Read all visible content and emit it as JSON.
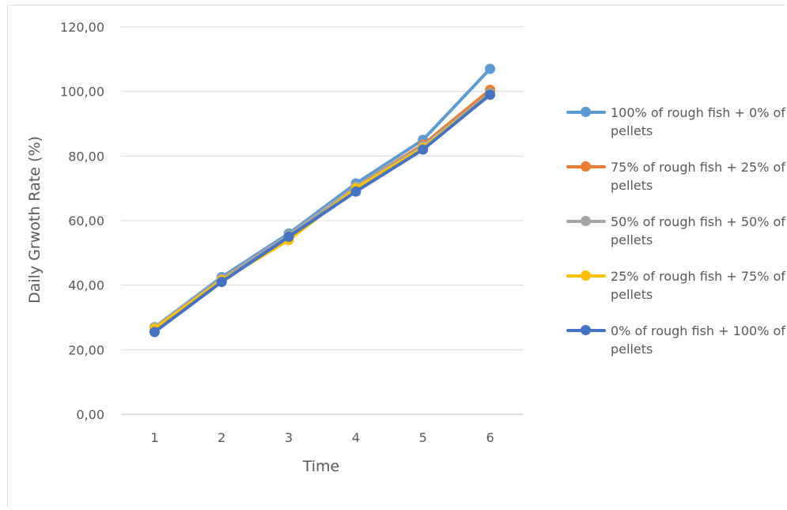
{
  "chart_data": {
    "type": "line",
    "xlabel": "Time",
    "ylabel": "Daily Grwoth Rate (%)",
    "categories": [
      "1",
      "2",
      "3",
      "4",
      "5",
      "6"
    ],
    "y_tick_labels": [
      "0,00",
      "20,00",
      "40,00",
      "60,00",
      "80,00",
      "100,00",
      "120,00"
    ],
    "ylim": [
      0,
      120
    ],
    "grid": "horizontal",
    "legend_position": "right",
    "series": [
      {
        "name": "100% of rough fish + 0% of pellets",
        "color": "#5b9bd5",
        "values": [
          27.0,
          42.5,
          56.0,
          71.5,
          85.0,
          107.0
        ]
      },
      {
        "name": "75% of rough fish + 25% of pellets",
        "color": "#ed7d31",
        "values": [
          26.5,
          42.0,
          55.0,
          70.5,
          83.5,
          100.5
        ]
      },
      {
        "name": "50% of rough fish + 50% of pellets",
        "color": "#a5a5a5",
        "values": [
          27.0,
          42.0,
          55.5,
          70.5,
          83.0,
          99.5
        ]
      },
      {
        "name": "25% of rough fish + 75% of pellets",
        "color": "#ffc000",
        "values": [
          26.5,
          41.5,
          54.0,
          70.0,
          82.5,
          99.0
        ]
      },
      {
        "name": "0% of rough fish + 100% of pellets",
        "color": "#4472c4",
        "values": [
          25.5,
          41.0,
          55.0,
          69.0,
          82.0,
          99.0
        ]
      }
    ]
  }
}
